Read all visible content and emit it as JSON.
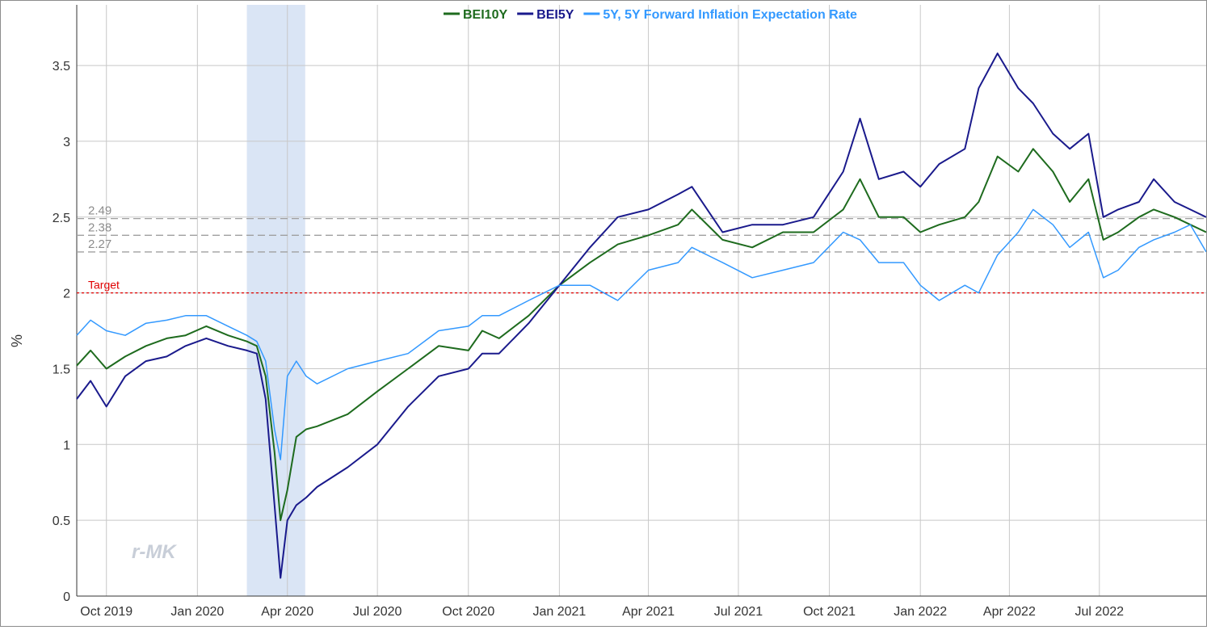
{
  "chart_data": {
    "type": "line",
    "ylabel": "%",
    "ylim": [
      0,
      3.9
    ],
    "xlim": [
      "2019-09-01",
      "2022-10-17"
    ],
    "grid": true,
    "legend_placement": "top-center",
    "watermark": "r-MK",
    "y_ticks": [
      "0",
      "0.5",
      "1",
      "1.5",
      "2",
      "2.5",
      "3",
      "3.5"
    ],
    "x_ticks": [
      {
        "date": "2019-10-01",
        "label": "Oct 2019"
      },
      {
        "date": "2020-01-01",
        "label": "Jan 2020"
      },
      {
        "date": "2020-04-01",
        "label": "Apr 2020"
      },
      {
        "date": "2020-07-01",
        "label": "Jul 2020"
      },
      {
        "date": "2020-10-01",
        "label": "Oct 2020"
      },
      {
        "date": "2021-01-01",
        "label": "Jan 2021"
      },
      {
        "date": "2021-04-01",
        "label": "Apr 2021"
      },
      {
        "date": "2021-07-01",
        "label": "Jul 2021"
      },
      {
        "date": "2021-10-01",
        "label": "Oct 2021"
      },
      {
        "date": "2022-01-01",
        "label": "Jan 2022"
      },
      {
        "date": "2022-04-01",
        "label": "Apr 2022"
      },
      {
        "date": "2022-07-01",
        "label": "Jul 2022"
      }
    ],
    "shaded_region": {
      "start": "2020-02-20",
      "end": "2020-04-19",
      "color": "#dae5f5"
    },
    "reference_lines": [
      {
        "label": "2.49",
        "value": 2.49,
        "color": "#a0a0a0"
      },
      {
        "label": "2.38",
        "value": 2.38,
        "color": "#a0a0a0"
      },
      {
        "label": "2.27",
        "value": 2.27,
        "color": "#a0a0a0"
      },
      {
        "label": "Target",
        "value": 2.0,
        "color": "#e00000"
      }
    ],
    "series": [
      {
        "name": "BEI10Y",
        "color": "#1e6b1e",
        "x": [
          "2019-09-01",
          "2019-09-15",
          "2019-10-01",
          "2019-10-20",
          "2019-11-10",
          "2019-12-01",
          "2019-12-20",
          "2020-01-10",
          "2020-02-01",
          "2020-02-20",
          "2020-03-01",
          "2020-03-10",
          "2020-03-19",
          "2020-03-25",
          "2020-04-01",
          "2020-04-10",
          "2020-04-20",
          "2020-05-01",
          "2020-06-01",
          "2020-07-01",
          "2020-08-01",
          "2020-09-01",
          "2020-10-01",
          "2020-10-15",
          "2020-11-01",
          "2020-12-01",
          "2021-01-01",
          "2021-02-01",
          "2021-03-01",
          "2021-04-01",
          "2021-05-01",
          "2021-05-15",
          "2021-06-15",
          "2021-07-15",
          "2021-08-15",
          "2021-09-15",
          "2021-10-15",
          "2021-11-01",
          "2021-11-20",
          "2021-12-15",
          "2022-01-01",
          "2022-01-20",
          "2022-02-15",
          "2022-03-01",
          "2022-03-20",
          "2022-04-10",
          "2022-04-25",
          "2022-05-15",
          "2022-06-01",
          "2022-06-20",
          "2022-07-05",
          "2022-07-20",
          "2022-08-10",
          "2022-08-25",
          "2022-09-15",
          "2022-10-01",
          "2022-10-17"
        ],
        "values": [
          1.52,
          1.62,
          1.5,
          1.58,
          1.65,
          1.7,
          1.72,
          1.78,
          1.72,
          1.68,
          1.65,
          1.45,
          0.95,
          0.5,
          0.7,
          1.05,
          1.1,
          1.12,
          1.2,
          1.35,
          1.5,
          1.65,
          1.62,
          1.75,
          1.7,
          1.85,
          2.05,
          2.2,
          2.32,
          2.38,
          2.45,
          2.55,
          2.35,
          2.3,
          2.4,
          2.4,
          2.55,
          2.75,
          2.5,
          2.5,
          2.4,
          2.45,
          2.5,
          2.6,
          2.9,
          2.8,
          2.95,
          2.8,
          2.6,
          2.75,
          2.35,
          2.4,
          2.5,
          2.55,
          2.5,
          2.45,
          2.4
        ]
      },
      {
        "name": "BEI5Y",
        "color": "#1a1a8c",
        "x": [
          "2019-09-01",
          "2019-09-15",
          "2019-10-01",
          "2019-10-20",
          "2019-11-10",
          "2019-12-01",
          "2019-12-20",
          "2020-01-10",
          "2020-02-01",
          "2020-02-20",
          "2020-03-01",
          "2020-03-10",
          "2020-03-19",
          "2020-03-25",
          "2020-04-01",
          "2020-04-10",
          "2020-04-20",
          "2020-05-01",
          "2020-06-01",
          "2020-07-01",
          "2020-08-01",
          "2020-09-01",
          "2020-10-01",
          "2020-10-15",
          "2020-11-01",
          "2020-12-01",
          "2021-01-01",
          "2021-02-01",
          "2021-03-01",
          "2021-04-01",
          "2021-05-01",
          "2021-05-15",
          "2021-06-15",
          "2021-07-15",
          "2021-08-15",
          "2021-09-15",
          "2021-10-15",
          "2021-11-01",
          "2021-11-20",
          "2021-12-15",
          "2022-01-01",
          "2022-01-20",
          "2022-02-15",
          "2022-03-01",
          "2022-03-20",
          "2022-04-10",
          "2022-04-25",
          "2022-05-15",
          "2022-06-01",
          "2022-06-20",
          "2022-07-05",
          "2022-07-20",
          "2022-08-10",
          "2022-08-25",
          "2022-09-15",
          "2022-10-01",
          "2022-10-17"
        ],
        "values": [
          1.3,
          1.42,
          1.25,
          1.45,
          1.55,
          1.58,
          1.65,
          1.7,
          1.65,
          1.62,
          1.6,
          1.3,
          0.6,
          0.12,
          0.5,
          0.6,
          0.65,
          0.72,
          0.85,
          1.0,
          1.25,
          1.45,
          1.5,
          1.6,
          1.6,
          1.8,
          2.05,
          2.3,
          2.5,
          2.55,
          2.65,
          2.7,
          2.4,
          2.45,
          2.45,
          2.5,
          2.8,
          3.15,
          2.75,
          2.8,
          2.7,
          2.85,
          2.95,
          3.35,
          3.58,
          3.35,
          3.25,
          3.05,
          2.95,
          3.05,
          2.5,
          2.55,
          2.6,
          2.75,
          2.6,
          2.55,
          2.5
        ]
      },
      {
        "name": "5Y, 5Y Forward Inflation Expectation Rate",
        "color": "#3399ff",
        "x": [
          "2019-09-01",
          "2019-09-15",
          "2019-10-01",
          "2019-10-20",
          "2019-11-10",
          "2019-12-01",
          "2019-12-20",
          "2020-01-10",
          "2020-02-01",
          "2020-02-20",
          "2020-03-01",
          "2020-03-10",
          "2020-03-19",
          "2020-03-25",
          "2020-04-01",
          "2020-04-10",
          "2020-04-20",
          "2020-05-01",
          "2020-06-01",
          "2020-07-01",
          "2020-08-01",
          "2020-09-01",
          "2020-10-01",
          "2020-10-15",
          "2020-11-01",
          "2020-12-01",
          "2021-01-01",
          "2021-02-01",
          "2021-03-01",
          "2021-04-01",
          "2021-05-01",
          "2021-05-15",
          "2021-06-15",
          "2021-07-15",
          "2021-08-15",
          "2021-09-15",
          "2021-10-15",
          "2021-11-01",
          "2021-11-20",
          "2021-12-15",
          "2022-01-01",
          "2022-01-20",
          "2022-02-15",
          "2022-03-01",
          "2022-03-20",
          "2022-04-10",
          "2022-04-25",
          "2022-05-15",
          "2022-06-01",
          "2022-06-20",
          "2022-07-05",
          "2022-07-20",
          "2022-08-10",
          "2022-08-25",
          "2022-09-15",
          "2022-10-01",
          "2022-10-17"
        ],
        "values": [
          1.72,
          1.82,
          1.75,
          1.72,
          1.8,
          1.82,
          1.85,
          1.85,
          1.78,
          1.72,
          1.68,
          1.55,
          1.1,
          0.9,
          1.45,
          1.55,
          1.45,
          1.4,
          1.5,
          1.55,
          1.6,
          1.75,
          1.78,
          1.85,
          1.85,
          1.95,
          2.05,
          2.05,
          1.95,
          2.15,
          2.2,
          2.3,
          2.2,
          2.1,
          2.15,
          2.2,
          2.4,
          2.35,
          2.2,
          2.2,
          2.05,
          1.95,
          2.05,
          2.0,
          2.25,
          2.4,
          2.55,
          2.45,
          2.3,
          2.4,
          2.1,
          2.15,
          2.3,
          2.35,
          2.4,
          2.45,
          2.27
        ]
      }
    ]
  }
}
